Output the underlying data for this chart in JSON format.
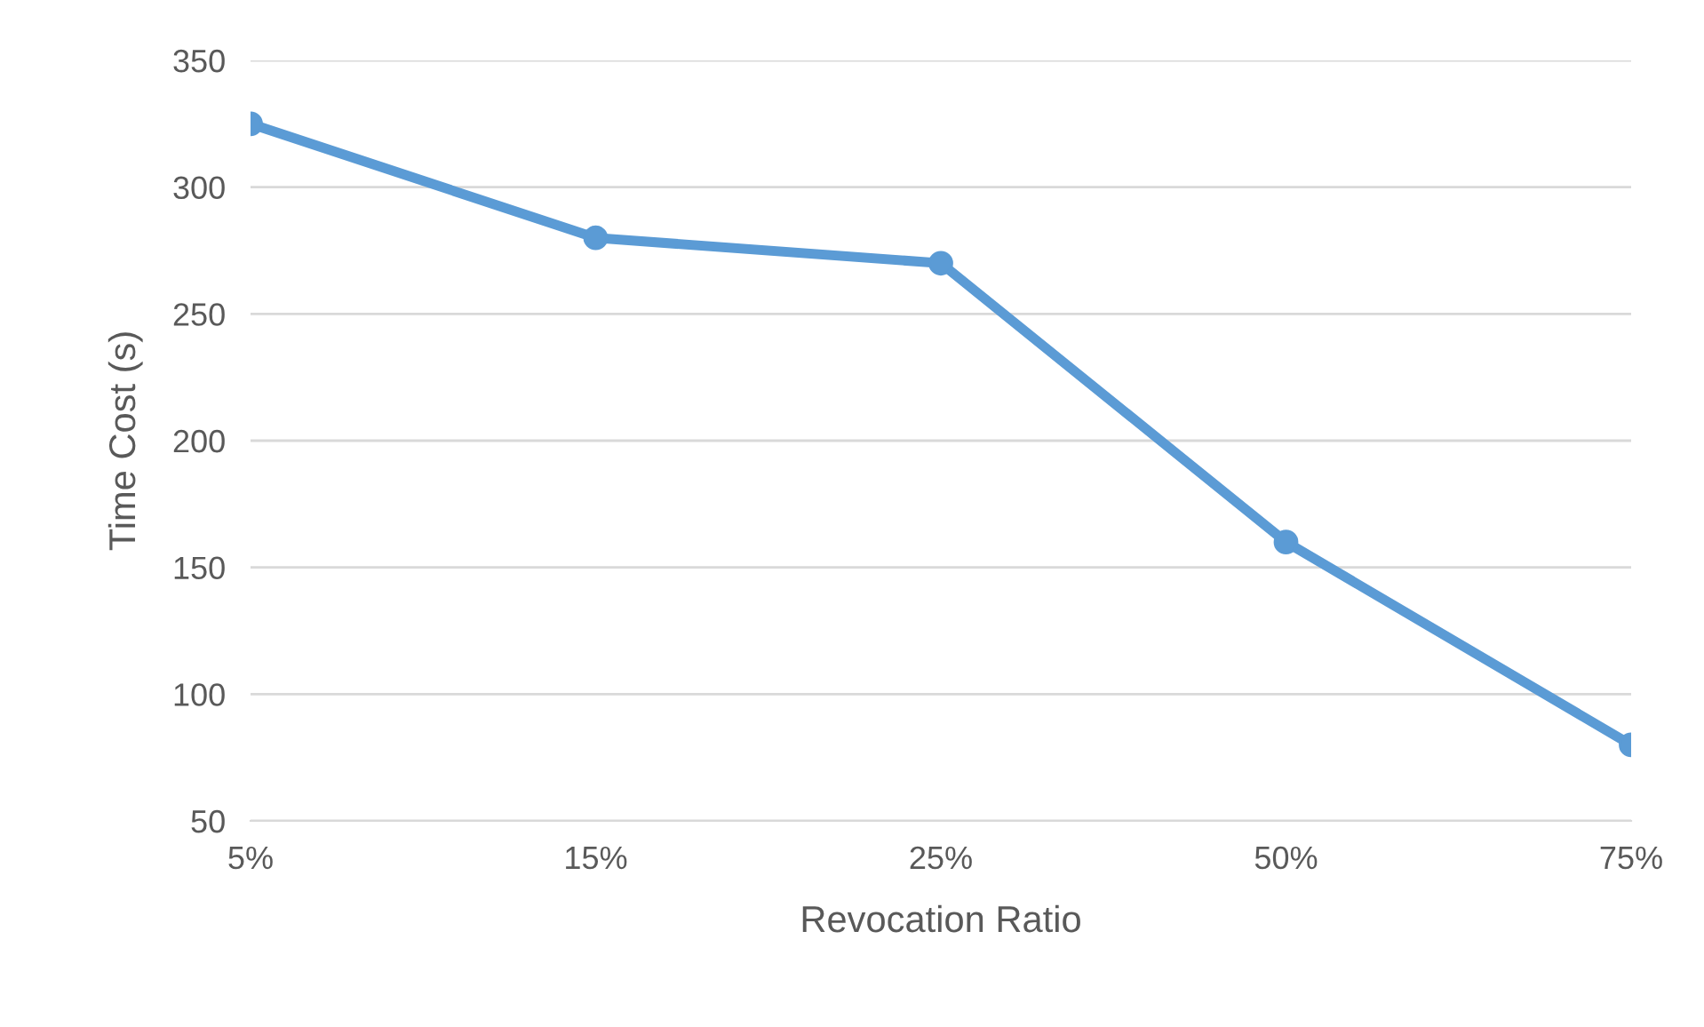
{
  "chart_data": {
    "type": "line",
    "xlabel": "Revocation Ratio",
    "ylabel": "Time Cost (s)",
    "categories": [
      "5%",
      "15%",
      "25%",
      "50%",
      "75%"
    ],
    "series": [
      {
        "color": "#5b9bd5",
        "values": [
          325,
          280,
          270,
          160,
          80
        ]
      }
    ],
    "ylim": [
      50,
      350
    ],
    "yticks": [
      50,
      100,
      150,
      200,
      250,
      300,
      350
    ],
    "grid": "y",
    "marker": "circle",
    "line_style": "solid"
  }
}
